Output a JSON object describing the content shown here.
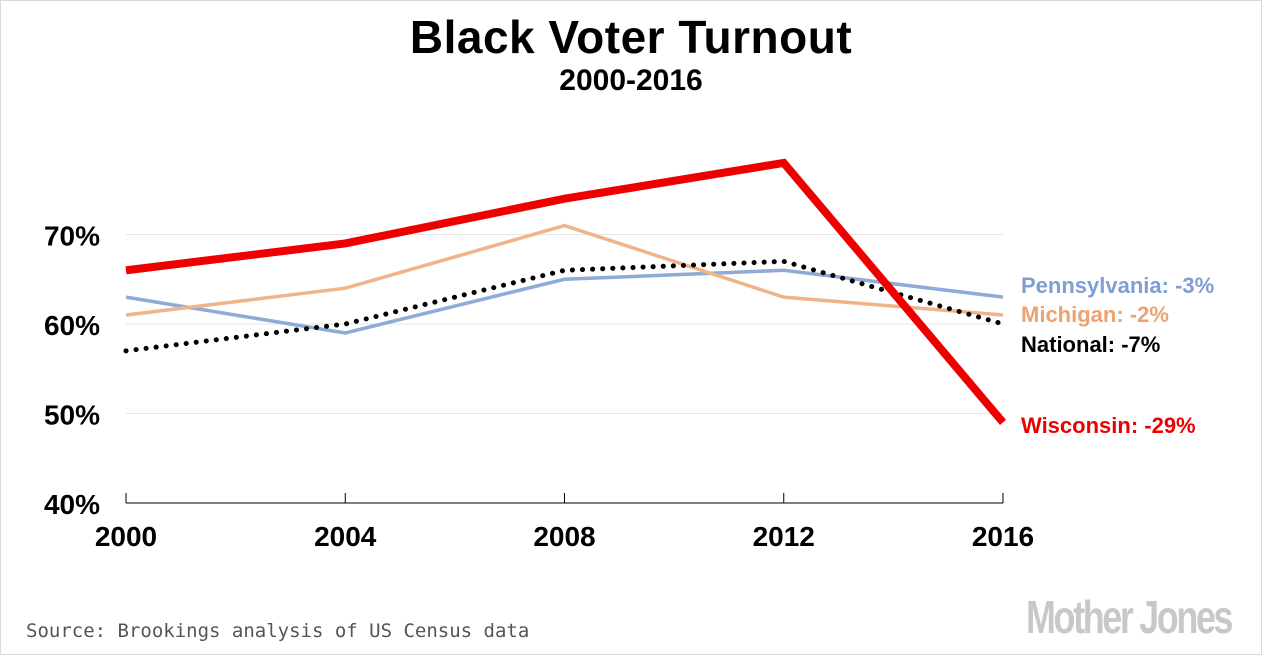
{
  "chart_data": {
    "type": "line",
    "title": "Black Voter Turnout",
    "subtitle": "2000-2016",
    "x": [
      "2000",
      "2004",
      "2008",
      "2012",
      "2016"
    ],
    "y_ticks": [
      "40%",
      "50%",
      "60%",
      "70%"
    ],
    "ylim": [
      40,
      80
    ],
    "grid": true,
    "series": [
      {
        "name": "Pennsylvania",
        "label": "Pennsylvania: -3%",
        "color": "#8eaad6",
        "style": "solid-thin",
        "values": [
          63,
          59,
          65,
          66,
          63
        ]
      },
      {
        "name": "Michigan",
        "label": "Michigan: -2%",
        "color": "#f0b48a",
        "style": "solid-thin",
        "values": [
          61,
          64,
          71,
          63,
          61
        ]
      },
      {
        "name": "National",
        "label": "National: -7%",
        "color": "#000000",
        "style": "dotted",
        "values": [
          57,
          60,
          66,
          67,
          60
        ]
      },
      {
        "name": "Wisconsin",
        "label": "Wisconsin: -29%",
        "color": "#ee0000",
        "style": "solid-thick",
        "values": [
          66,
          69,
          74,
          78,
          49
        ]
      }
    ]
  },
  "footer": {
    "source": "Source: Brookings analysis of US Census data",
    "brand": "Mother Jones"
  }
}
